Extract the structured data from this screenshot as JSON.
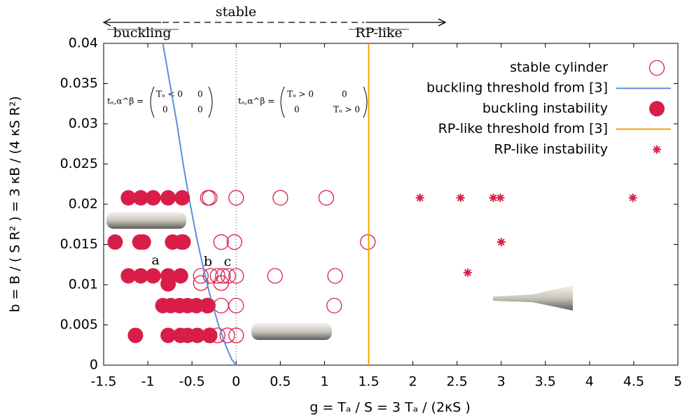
{
  "chart_data": {
    "type": "scatter",
    "xlabel": "g = Tₐ / S = 3 Tₐ / (2κS )",
    "ylabel": "b = B / ( S R² ) = 3 κB / (4 κS R²)",
    "xlim": [
      -1.5,
      5
    ],
    "ylim": [
      0,
      0.04
    ],
    "xticks": [
      -1.5,
      -1,
      -0.5,
      0,
      0.5,
      1,
      1.5,
      2,
      2.5,
      3,
      3.5,
      4,
      4.5,
      5
    ],
    "yticks": [
      0,
      0.005,
      0.01,
      0.015,
      0.02,
      0.025,
      0.03,
      0.035,
      0.04
    ],
    "series": [
      {
        "name": "stable cylinder",
        "marker": "open-circle",
        "color": "#d81e48",
        "x": [
          -0.32,
          -0.3,
          0,
          0.5,
          1.02,
          -0.17,
          -0.02,
          1.49,
          -0.4,
          -0.29,
          -0.21,
          -0.15,
          -0.09,
          0,
          0.44,
          1.12,
          -0.4,
          -0.17,
          -0.32,
          -0.17,
          0,
          1.11,
          -0.3,
          -0.21,
          -0.1,
          0
        ],
        "values": [
          0.0208,
          0.0208,
          0.0208,
          0.0208,
          0.0208,
          0.0153,
          0.0153,
          0.0153,
          0.0111,
          0.0111,
          0.0111,
          0.0111,
          0.0111,
          0.0111,
          0.0111,
          0.0111,
          0.0102,
          0.0102,
          0.0074,
          0.0074,
          0.0074,
          0.0074,
          0.0037,
          0.0037,
          0.0037,
          0.0037
        ]
      },
      {
        "name": "buckling threshold from [3]",
        "marker": "line",
        "color": "#5b8ede",
        "x": [
          -0.83,
          -0.75,
          -0.67,
          -0.6,
          -0.52,
          -0.45,
          -0.37,
          -0.28,
          -0.2,
          -0.12,
          -0.05,
          0
        ],
        "values": [
          0.04,
          0.035,
          0.03,
          0.025,
          0.02,
          0.016,
          0.012,
          0.008,
          0.005,
          0.0025,
          0.0007,
          0
        ]
      },
      {
        "name": "buckling instability",
        "marker": "filled-circle",
        "color": "#d81e48",
        "x": [
          -1.22,
          -1.08,
          -0.94,
          -0.77,
          -0.61,
          -1.37,
          -1.09,
          -1.05,
          -0.72,
          -0.62,
          -0.6,
          -1.22,
          -1.08,
          -0.94,
          -0.77,
          -0.63,
          -0.77,
          -0.83,
          -0.74,
          -0.64,
          -0.55,
          -0.45,
          -0.33,
          -1.14,
          -0.77,
          -0.63,
          -0.55,
          -0.44,
          -0.3
        ],
        "values": [
          0.0208,
          0.0208,
          0.0208,
          0.0208,
          0.0208,
          0.0153,
          0.0153,
          0.0153,
          0.0153,
          0.0153,
          0.0153,
          0.0111,
          0.0111,
          0.0111,
          0.0111,
          0.0111,
          0.0101,
          0.0074,
          0.0074,
          0.0074,
          0.0074,
          0.0074,
          0.0074,
          0.0037,
          0.0037,
          0.0037,
          0.0037,
          0.0037,
          0.0037
        ]
      },
      {
        "name": "RP-like threshold from [3]",
        "marker": "line",
        "color": "#f5a300",
        "x": [
          1.5,
          1.5
        ],
        "values": [
          0,
          0.04
        ]
      },
      {
        "name": "RP-like instability",
        "marker": "star",
        "color": "#d81e48",
        "x": [
          2.08,
          2.54,
          2.91,
          2.99,
          4.49,
          3.0,
          2.62
        ],
        "values": [
          0.0208,
          0.0208,
          0.0208,
          0.0208,
          0.0208,
          0.0153,
          0.0115
        ]
      }
    ],
    "annotations": {
      "stable": "stable",
      "buckling": "buckling",
      "rp": "RP-like",
      "a": "a",
      "b": "b",
      "c": "c",
      "left_lhs": "tₐ,α^β =",
      "left_entries": [
        "Tₐ < 0",
        "0",
        "0",
        "0"
      ],
      "right_lhs": "tₐ,α^β =",
      "right_entries": [
        "Tₐ > 0",
        "0",
        "0",
        "Tₐ > 0"
      ]
    }
  }
}
